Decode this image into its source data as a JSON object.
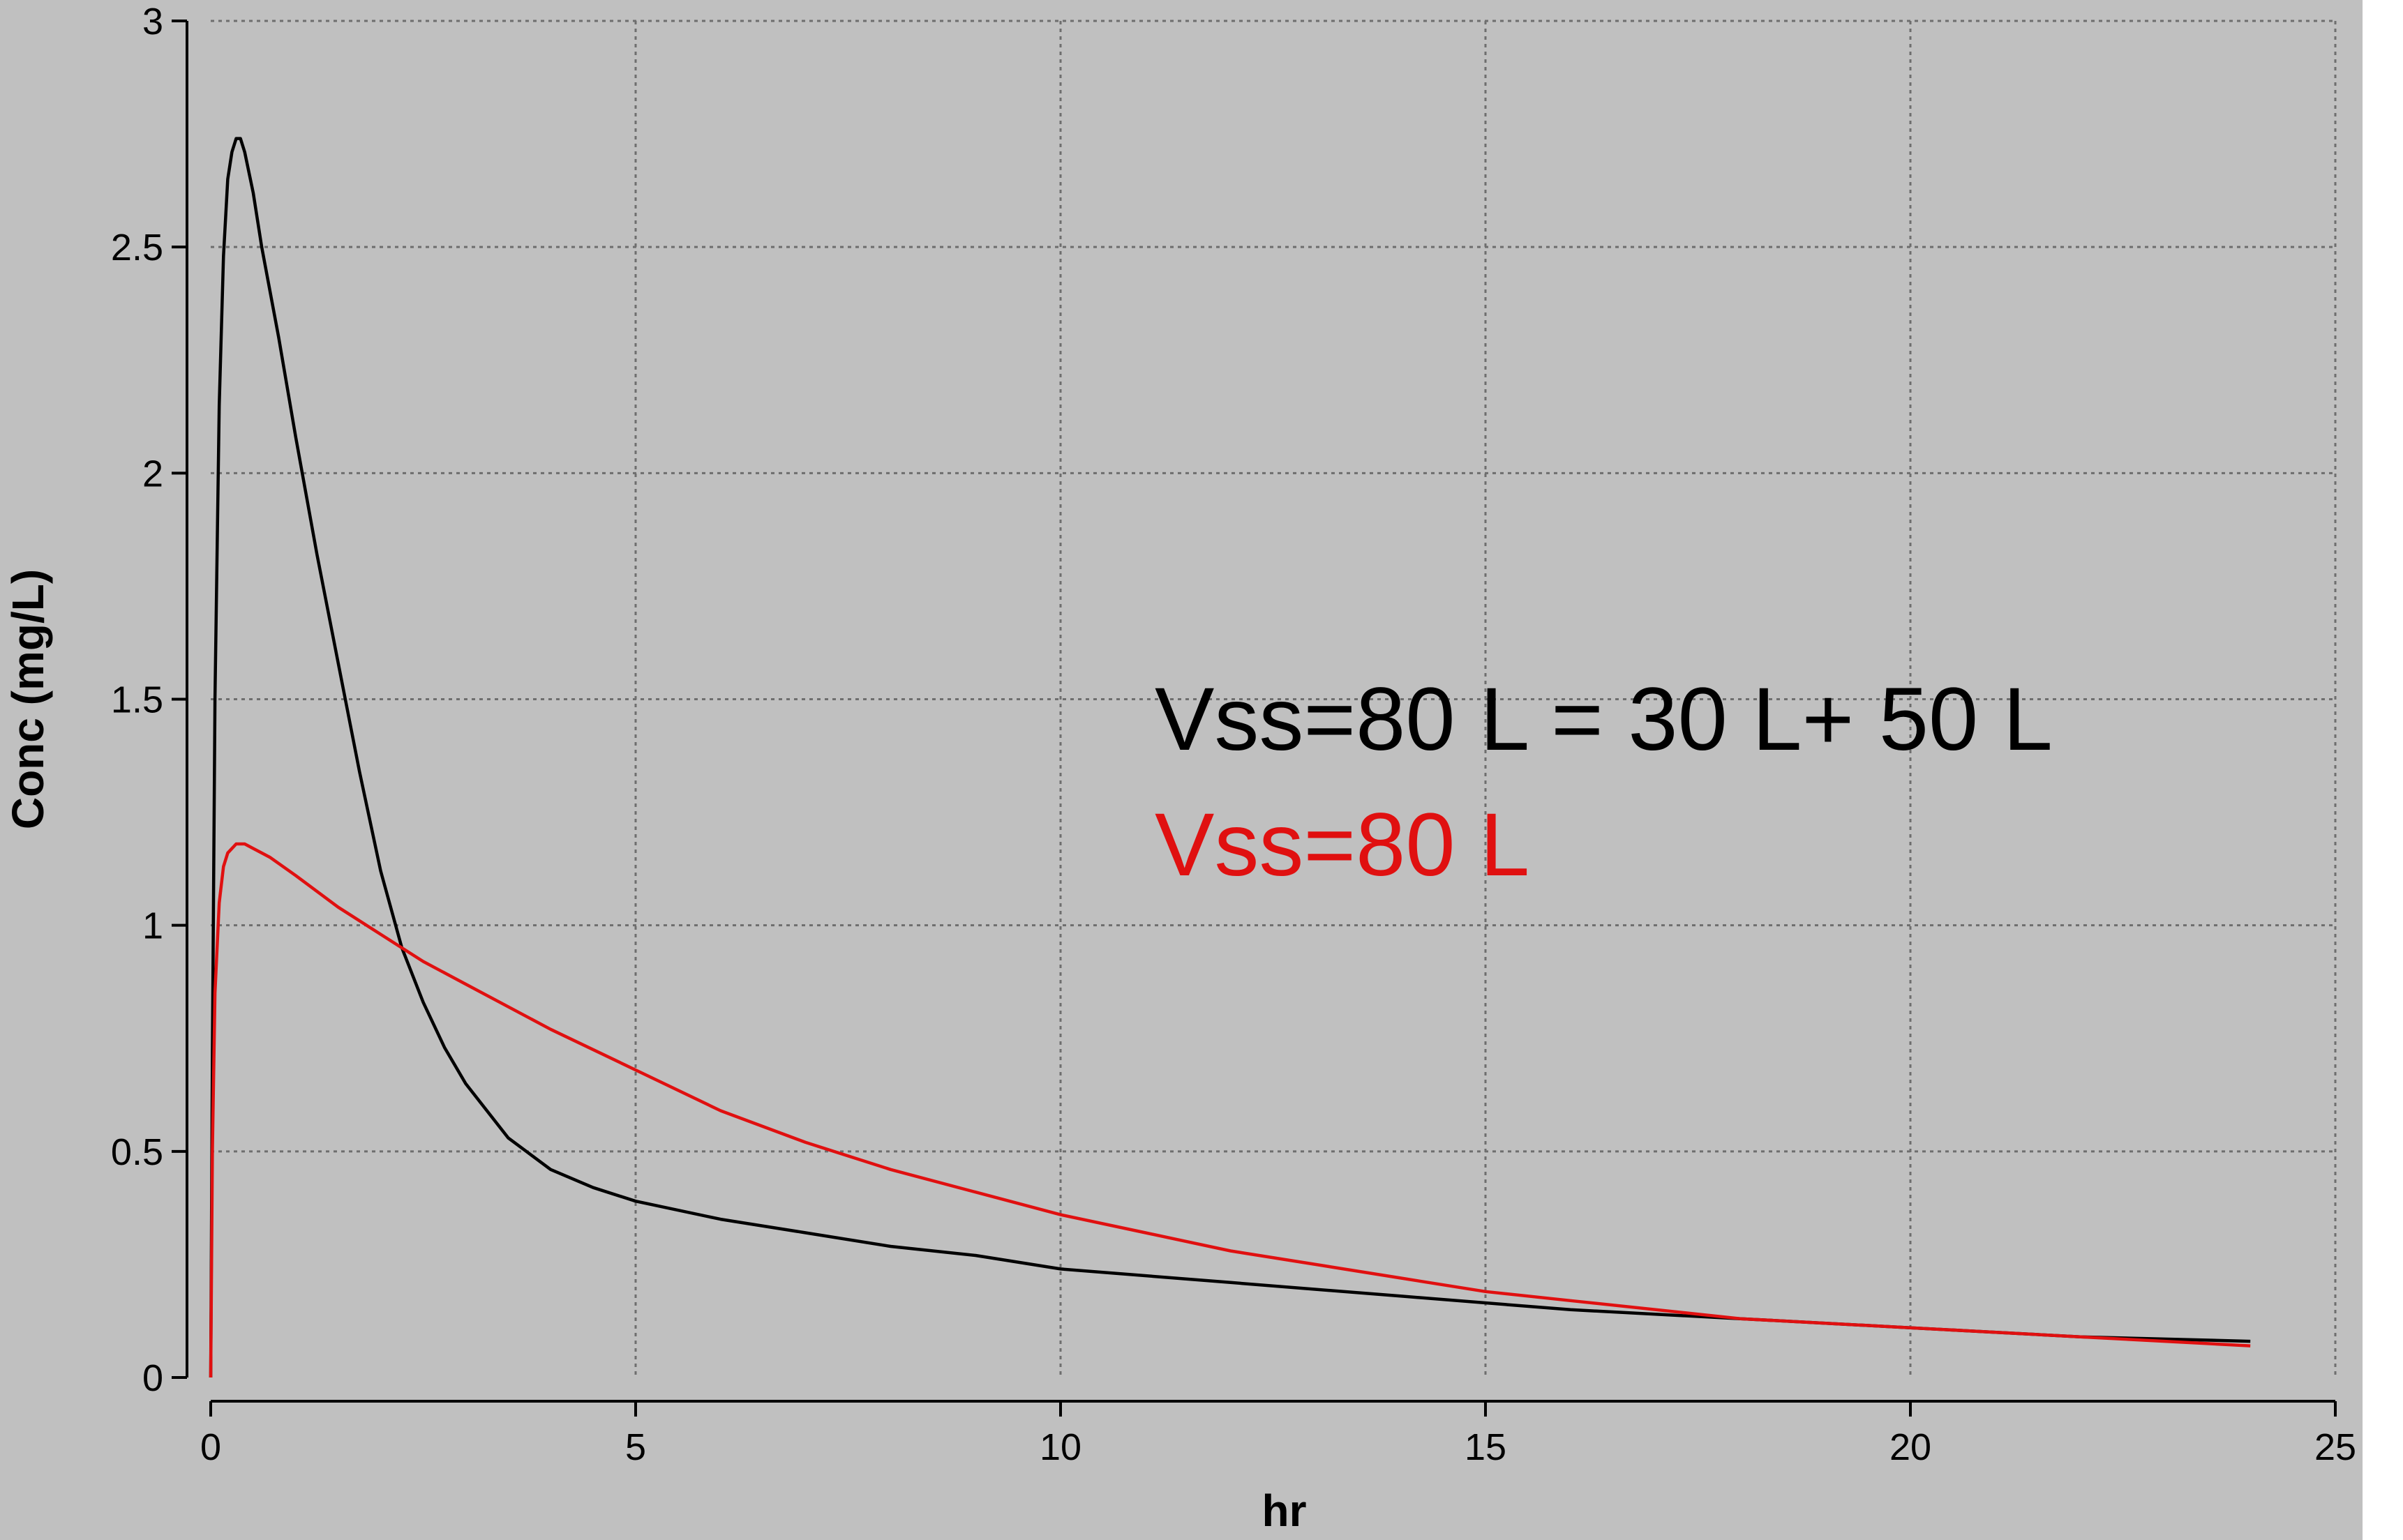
{
  "chart_data": {
    "type": "line",
    "xlabel": "hr",
    "ylabel": "Conc (mg/L)",
    "xlim": [
      0,
      25
    ],
    "ylim": [
      0,
      3
    ],
    "xticks": [
      0,
      5,
      10,
      15,
      20,
      25
    ],
    "yticks": [
      0,
      0.5,
      1,
      1.5,
      2,
      2.5,
      3
    ],
    "xtick_labels": [
      "0",
      "5",
      "10",
      "15",
      "20",
      "25"
    ],
    "ytick_labels": [
      "0",
      "0.5",
      "1",
      "1.5",
      "2",
      "2.5",
      "3"
    ],
    "grid": true,
    "series": [
      {
        "color": "#000000",
        "x": [
          0,
          0.02,
          0.05,
          0.1,
          0.15,
          0.2,
          0.25,
          0.3,
          0.35,
          0.4,
          0.5,
          0.6,
          0.8,
          1.0,
          1.25,
          1.5,
          1.75,
          2.0,
          2.25,
          2.5,
          2.75,
          3.0,
          3.5,
          4.0,
          4.5,
          5.0,
          6.0,
          7.0,
          8.0,
          9.0,
          10.0,
          12.0,
          14.0,
          16.0,
          18.0,
          20.0,
          22.0,
          24.0
        ],
        "y": [
          0,
          0.72,
          1.5,
          2.15,
          2.48,
          2.65,
          2.71,
          2.74,
          2.74,
          2.71,
          2.62,
          2.5,
          2.3,
          2.08,
          1.82,
          1.58,
          1.34,
          1.12,
          0.95,
          0.83,
          0.73,
          0.65,
          0.53,
          0.46,
          0.42,
          0.39,
          0.35,
          0.32,
          0.29,
          0.27,
          0.24,
          0.21,
          0.18,
          0.15,
          0.13,
          0.11,
          0.09,
          0.08
        ]
      },
      {
        "color": "#e01010",
        "x": [
          0,
          0.02,
          0.05,
          0.1,
          0.15,
          0.2,
          0.3,
          0.4,
          0.5,
          0.7,
          1.0,
          1.5,
          2.0,
          2.5,
          3.0,
          4.0,
          5.0,
          6.0,
          7.0,
          8.0,
          9.0,
          10.0,
          11.0,
          12.0,
          13.0,
          14.0,
          15.0,
          16.0,
          18.0,
          20.0,
          22.0,
          24.0
        ],
        "y": [
          0,
          0.5,
          0.85,
          1.05,
          1.13,
          1.16,
          1.18,
          1.18,
          1.17,
          1.15,
          1.11,
          1.04,
          0.98,
          0.92,
          0.87,
          0.77,
          0.68,
          0.59,
          0.52,
          0.46,
          0.41,
          0.36,
          0.32,
          0.28,
          0.25,
          0.22,
          0.19,
          0.17,
          0.13,
          0.11,
          0.09,
          0.07
        ]
      }
    ],
    "annotations": [
      {
        "text": "Vss=80 L = 30 L+ 50 L",
        "color": "#000000"
      },
      {
        "text": "Vss=80 L",
        "color": "#e01010"
      }
    ]
  }
}
